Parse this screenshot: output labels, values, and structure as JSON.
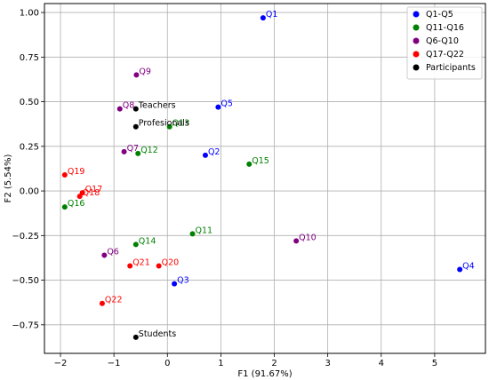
{
  "chart_data": {
    "type": "scatter",
    "title": "",
    "xlabel": "F1 (91.67%)",
    "ylabel": "F2 (5.54%)",
    "xlim": [
      -2.3,
      5.95
    ],
    "ylim": [
      -0.91,
      1.05
    ],
    "xticks": [
      -2,
      -1,
      0,
      1,
      2,
      3,
      4,
      5
    ],
    "yticks": [
      -0.75,
      -0.5,
      -0.25,
      0.0,
      0.25,
      0.5,
      0.75,
      1.0
    ],
    "xtick_labels": [
      "−2",
      "−1",
      "0",
      "1",
      "2",
      "3",
      "4",
      "5"
    ],
    "ytick_labels": [
      "−0.75",
      "−0.50",
      "−0.25",
      "0.00",
      "0.25",
      "0.50",
      "0.75",
      "1.00"
    ],
    "grid": true,
    "legend_position": "top-right",
    "series": [
      {
        "name": "Q1-Q5",
        "color": "#0000ff",
        "points": [
          {
            "label": "Q1",
            "x": 1.79,
            "y": 0.97
          },
          {
            "label": "Q2",
            "x": 0.71,
            "y": 0.2
          },
          {
            "label": "Q3",
            "x": 0.13,
            "y": -0.52
          },
          {
            "label": "Q4",
            "x": 5.47,
            "y": -0.44
          },
          {
            "label": "Q5",
            "x": 0.95,
            "y": 0.47
          }
        ]
      },
      {
        "name": "Q11-Q16",
        "color": "#008000",
        "points": [
          {
            "label": "Q11",
            "x": 0.47,
            "y": -0.24
          },
          {
            "label": "Q12",
            "x": -0.55,
            "y": 0.21
          },
          {
            "label": "Q13",
            "x": 0.04,
            "y": 0.36
          },
          {
            "label": "Q14",
            "x": -0.59,
            "y": -0.3
          },
          {
            "label": "Q15",
            "x": 1.53,
            "y": 0.15
          },
          {
            "label": "Q16",
            "x": -1.92,
            "y": -0.09
          }
        ]
      },
      {
        "name": "Q6-Q10",
        "color": "#800080",
        "points": [
          {
            "label": "Q6",
            "x": -1.18,
            "y": -0.36
          },
          {
            "label": "Q7",
            "x": -0.81,
            "y": 0.22
          },
          {
            "label": "Q8",
            "x": -0.89,
            "y": 0.46
          },
          {
            "label": "Q9",
            "x": -0.58,
            "y": 0.65
          },
          {
            "label": "Q10",
            "x": 2.41,
            "y": -0.28
          }
        ]
      },
      {
        "name": "Q17-Q22",
        "color": "#ff0000",
        "points": [
          {
            "label": "Q17",
            "x": -1.59,
            "y": -0.01
          },
          {
            "label": "Q18",
            "x": -1.64,
            "y": -0.03
          },
          {
            "label": "Q19",
            "x": -1.92,
            "y": 0.09
          },
          {
            "label": "Q20",
            "x": -0.16,
            "y": -0.42
          },
          {
            "label": "Q21",
            "x": -0.7,
            "y": -0.42
          },
          {
            "label": "Q22",
            "x": -1.22,
            "y": -0.63
          }
        ]
      },
      {
        "name": "Participants",
        "color": "#000000",
        "points": [
          {
            "label": "Teachers",
            "x": -0.59,
            "y": 0.46
          },
          {
            "label": "Profesionals",
            "x": -0.59,
            "y": 0.36
          },
          {
            "label": "Students",
            "x": -0.59,
            "y": -0.82
          }
        ]
      }
    ]
  }
}
